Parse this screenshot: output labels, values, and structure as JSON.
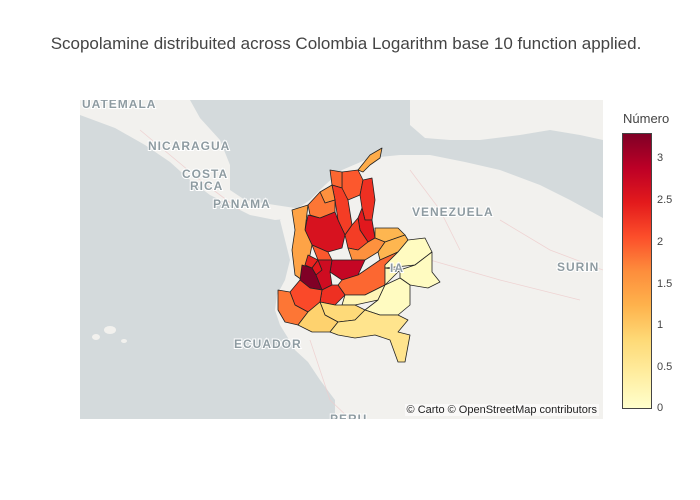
{
  "title": "Scopolamine distribuited across Colombia Logarithm base 10 function applied.",
  "map": {
    "labels": [
      {
        "key": "guatemala",
        "text": "UATEMALA"
      },
      {
        "key": "nicaragua",
        "text": "NICARAGUA"
      },
      {
        "key": "costa1",
        "text": "COSTA"
      },
      {
        "key": "costa2",
        "text": "RICA"
      },
      {
        "key": "panama",
        "text": "PANAMA"
      },
      {
        "key": "venezuela",
        "text": "VENEZUELA"
      },
      {
        "key": "colombia",
        "text": "IA"
      },
      {
        "key": "suriname",
        "text": "SURIN"
      },
      {
        "key": "ecuador",
        "text": "ECUADOR"
      },
      {
        "key": "peru",
        "text": "PERU"
      }
    ],
    "attribution": "© Carto © OpenStreetMap contributors"
  },
  "colorbar": {
    "title": "Número",
    "ticks": [
      "3",
      "2.5",
      "2",
      "1.5",
      "1",
      "0.5",
      "0"
    ],
    "range": [
      0,
      3.3
    ],
    "colors": [
      "#ffffcc",
      "#ffeda0",
      "#fed976",
      "#feb24c",
      "#fd8d3c",
      "#fc4e2a",
      "#e31a1c",
      "#bd0026",
      "#800026"
    ]
  },
  "chart_data": {
    "type": "choropleth",
    "colorscale": "YlOrRd",
    "color_label": "Número",
    "zmin": 0,
    "zmax": 3.3,
    "regions": [
      {
        "id": "guajira",
        "value": 1.3
      },
      {
        "id": "magdalena",
        "value": 2.0
      },
      {
        "id": "atlantico",
        "value": 1.9
      },
      {
        "id": "cesar",
        "value": 2.3
      },
      {
        "id": "bolivar",
        "value": 2.2
      },
      {
        "id": "cordoba",
        "value": 1.8
      },
      {
        "id": "sucre",
        "value": 1.6
      },
      {
        "id": "norte_santander",
        "value": 2.5
      },
      {
        "id": "antioquia",
        "value": 2.6
      },
      {
        "id": "choco",
        "value": 1.4
      },
      {
        "id": "santander",
        "value": 2.2
      },
      {
        "id": "arauca",
        "value": 1.2
      },
      {
        "id": "boyaca",
        "value": 1.6
      },
      {
        "id": "casanare",
        "value": 1.2
      },
      {
        "id": "caldas",
        "value": 2.0
      },
      {
        "id": "cundinamarca",
        "value": 2.8
      },
      {
        "id": "risaralda",
        "value": 2.4
      },
      {
        "id": "quindio",
        "value": 2.5
      },
      {
        "id": "tolima",
        "value": 2.7
      },
      {
        "id": "valle",
        "value": 3.3
      },
      {
        "id": "huila",
        "value": 2.3
      },
      {
        "id": "cauca",
        "value": 2.1
      },
      {
        "id": "narino",
        "value": 1.8
      },
      {
        "id": "meta",
        "value": 1.9
      },
      {
        "id": "vichada",
        "value": 0.1
      },
      {
        "id": "guainia",
        "value": 0.1
      },
      {
        "id": "guaviare",
        "value": 0.2
      },
      {
        "id": "caqueta",
        "value": 0.8
      },
      {
        "id": "putumayo",
        "value": 0.9
      },
      {
        "id": "vaupes",
        "value": 0.1
      },
      {
        "id": "amazonas",
        "value": 0.6
      }
    ]
  }
}
